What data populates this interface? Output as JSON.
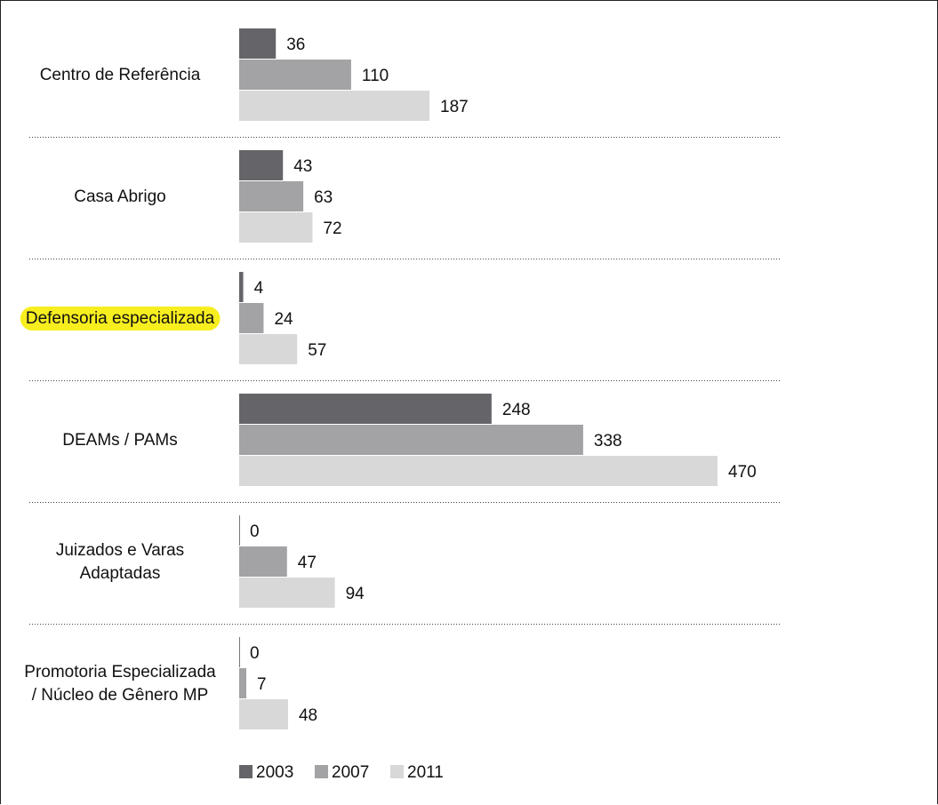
{
  "chart_data": {
    "type": "bar",
    "orientation": "horizontal",
    "categories": [
      [
        "Centro de Referência"
      ],
      [
        "Casa Abrigo"
      ],
      [
        "Defensoria especializada"
      ],
      [
        "DEAMs / PAMs"
      ],
      [
        "Juizados e Varas",
        "Adaptadas"
      ],
      [
        "Promotoria Especializada",
        "/ Núcleo de Gênero MP"
      ]
    ],
    "highlighted_category": 2,
    "highlight_color": "#f7ee1f",
    "series": [
      {
        "name": "2003",
        "color": "#656468",
        "values": [
          36,
          43,
          4,
          248,
          0,
          0
        ]
      },
      {
        "name": "2007",
        "color": "#a3a2a5",
        "values": [
          110,
          63,
          24,
          338,
          47,
          7
        ]
      },
      {
        "name": "2011",
        "color": "#d8d8d9",
        "values": [
          187,
          72,
          57,
          470,
          94,
          48
        ]
      }
    ],
    "xlim": [
      0,
      470
    ],
    "grid": false,
    "legend": "bottom",
    "data_labels": true
  }
}
